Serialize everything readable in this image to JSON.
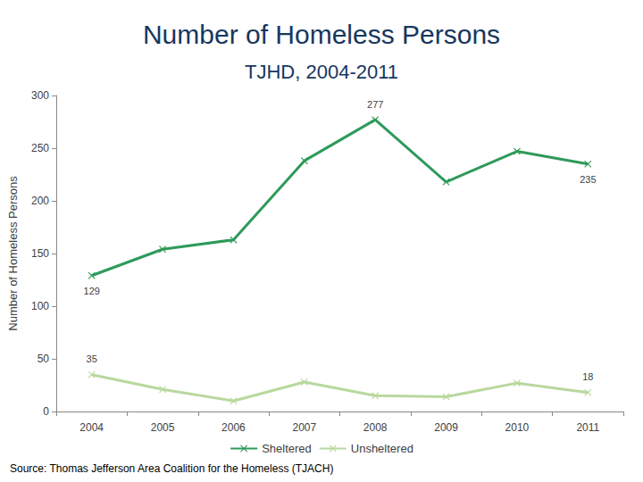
{
  "chart_data": {
    "type": "line",
    "title": "Number of Homeless Persons",
    "subtitle": "TJHD, 2004-2011",
    "y_label": "Number of Homeless Persons",
    "source": "Source: Thomas Jefferson Area Coalition for the Homeless (TJACH)",
    "categories": [
      "2004",
      "2005",
      "2006",
      "2007",
      "2008",
      "2009",
      "2010",
      "2011"
    ],
    "series": [
      {
        "name": "Sheltered",
        "color": "#2e9a5a",
        "marker": "x",
        "values": [
          129,
          154,
          163,
          238,
          277,
          218,
          247,
          235
        ],
        "value_labels": [
          "129",
          null,
          null,
          null,
          "277",
          null,
          null,
          "235"
        ]
      },
      {
        "name": "Unsheltered",
        "color": "#b9d89e",
        "marker": "x",
        "values": [
          35,
          21,
          10,
          28,
          15,
          14,
          27,
          18
        ],
        "value_labels": [
          "35",
          null,
          null,
          null,
          null,
          null,
          null,
          "18"
        ]
      }
    ],
    "ylim": [
      0,
      300
    ],
    "yticks": [
      0,
      50,
      100,
      150,
      200,
      250,
      300
    ],
    "grid": false,
    "legend": "bottom",
    "data_labels": true
  }
}
